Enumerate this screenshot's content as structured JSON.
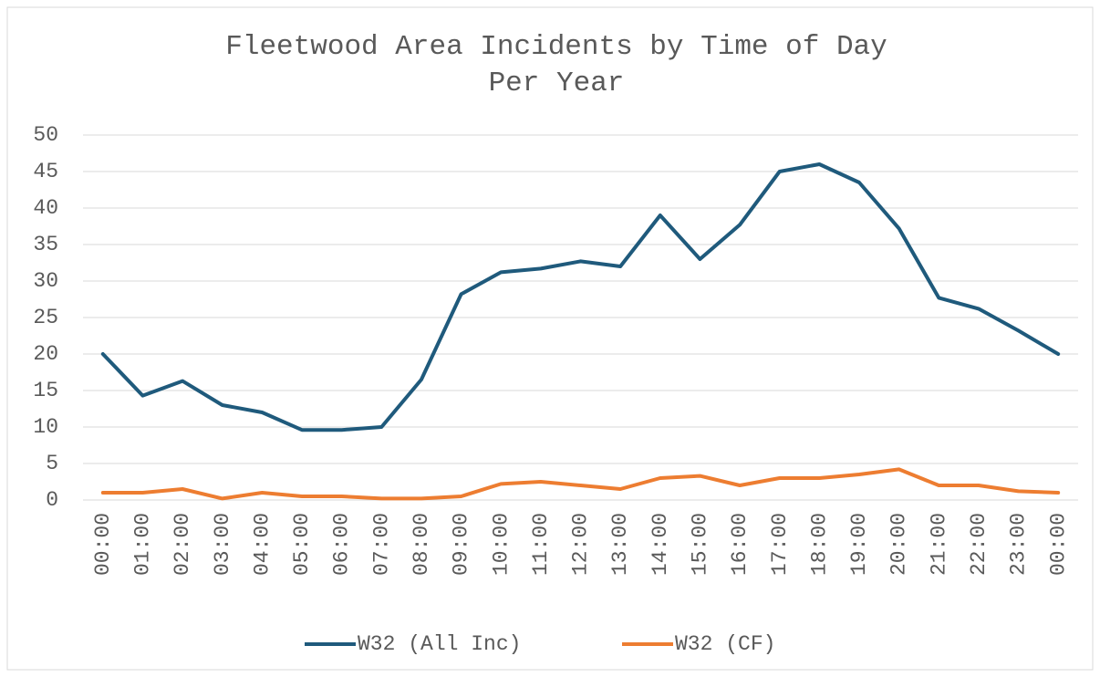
{
  "chart_data": {
    "type": "line",
    "title": [
      "Fleetwood Area Incidents by Time of Day",
      "Per Year"
    ],
    "categories": [
      "00:00",
      "01:00",
      "02:00",
      "03:00",
      "04:00",
      "05:00",
      "06:00",
      "07:00",
      "08:00",
      "09:00",
      "10:00",
      "11:00",
      "12:00",
      "13:00",
      "14:00",
      "15:00",
      "16:00",
      "17:00",
      "18:00",
      "19:00",
      "20:00",
      "21:00",
      "22:00",
      "23:00",
      "00:00"
    ],
    "series": [
      {
        "name": "W32 (All Inc)",
        "color": "#1f5a7c",
        "values": [
          20,
          14.3,
          16.3,
          13,
          12,
          9.6,
          9.6,
          10,
          16.5,
          28.2,
          31.2,
          31.7,
          32.7,
          32,
          39,
          33,
          37.7,
          45,
          46,
          43.5,
          37.2,
          27.7,
          26.2,
          23.2,
          20
        ]
      },
      {
        "name": "W32 (CF)",
        "color": "#ed7d31",
        "values": [
          1,
          1,
          1.5,
          0.2,
          1,
          0.5,
          0.5,
          0.2,
          0.2,
          0.5,
          2.2,
          2.5,
          2,
          1.5,
          3,
          3.3,
          2,
          3,
          3,
          3.5,
          4.2,
          2,
          2,
          1.2,
          1
        ]
      }
    ],
    "ylim": [
      0,
      50
    ],
    "yticks": [
      0,
      5,
      10,
      15,
      20,
      25,
      30,
      35,
      40,
      45,
      50
    ],
    "grid": true,
    "legend": "bottom"
  }
}
